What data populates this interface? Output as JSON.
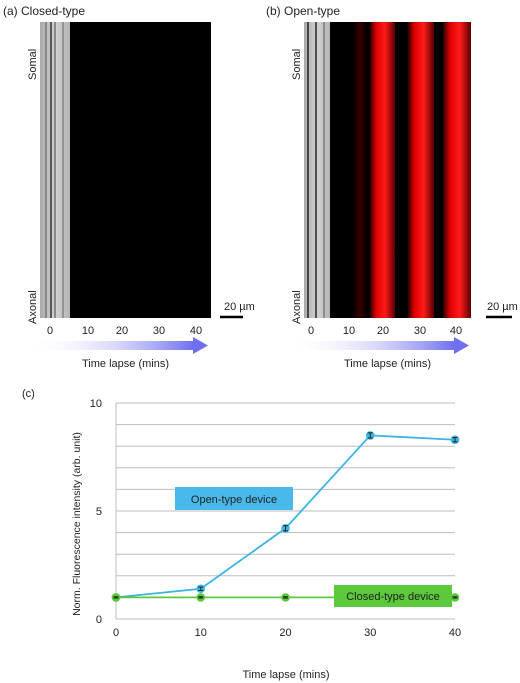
{
  "panel_a": {
    "label": "(a)",
    "title": "Closed-type",
    "somal": "Somal",
    "axonal": "Axonal",
    "ticks": [
      "0",
      "10",
      "20",
      "30",
      "40"
    ],
    "xlabel": "Time lapse (mins)",
    "scalebar": "20 µm"
  },
  "panel_b": {
    "label": "(b)",
    "title": "Open-type",
    "somal": "Somal",
    "axonal": "Axonal",
    "ticks": [
      "0",
      "10",
      "20",
      "30",
      "40"
    ],
    "xlabel": "Time lapse (mins)",
    "scalebar": "20 µm"
  },
  "panel_c": {
    "label": "(c)"
  },
  "chart_data": {
    "type": "line",
    "xlabel": "Time lapse (mins)",
    "ylabel": "Norm. Fluorescence intensity (arb. unit)",
    "xlim": [
      0,
      40
    ],
    "ylim": [
      0,
      10
    ],
    "x_ticks": [
      0,
      10,
      20,
      30,
      40
    ],
    "y_ticks": [
      0,
      5,
      10
    ],
    "grid": true,
    "series": [
      {
        "name": "Open-type device",
        "color": "#3bb4e6",
        "x": [
          0,
          10,
          20,
          30,
          40
        ],
        "y": [
          1.0,
          1.4,
          4.2,
          8.5,
          8.3
        ],
        "err": [
          0.05,
          0.08,
          0.12,
          0.12,
          0.1
        ]
      },
      {
        "name": "Closed-type device",
        "color": "#5cc83c",
        "x": [
          0,
          10,
          20,
          30,
          40
        ],
        "y": [
          1.0,
          1.0,
          1.0,
          1.0,
          1.0
        ],
        "err": [
          0.03,
          0.03,
          0.03,
          0.03,
          0.03
        ]
      }
    ]
  }
}
